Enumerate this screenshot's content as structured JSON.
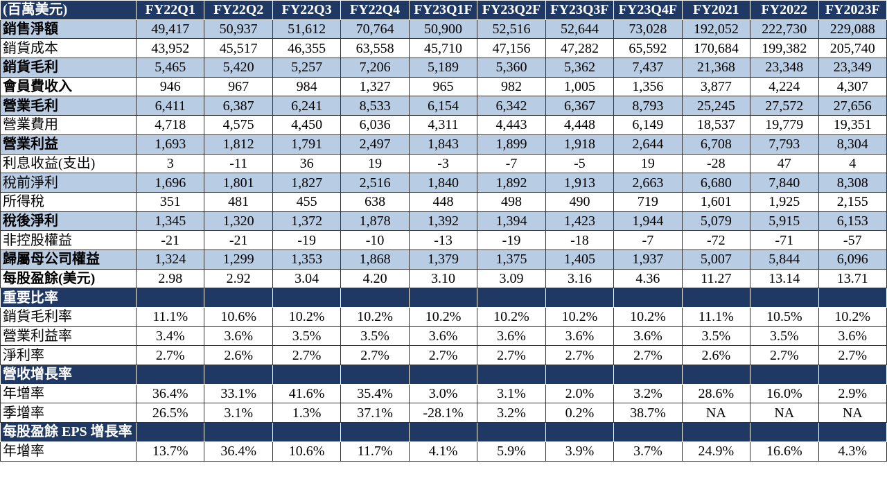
{
  "table": {
    "header": [
      "(百萬美元)",
      "FY22Q1",
      "FY22Q2",
      "FY22Q3",
      "FY22Q4",
      "FY23Q1F",
      "FY23Q2F",
      "FY23Q3F",
      "FY23Q4F",
      "FY2021",
      "FY2022",
      "FY2023F"
    ],
    "rows": [
      {
        "cells": [
          "銷售淨額",
          "49,417",
          "50,937",
          "51,612",
          "70,764",
          "50,900",
          "52,516",
          "52,644",
          "73,028",
          "192,052",
          "222,730",
          "229,088"
        ],
        "shaded": true,
        "bold": true
      },
      {
        "cells": [
          "銷貨成本",
          "43,952",
          "45,517",
          "46,355",
          "63,558",
          "45,710",
          "47,156",
          "47,282",
          "65,592",
          "170,684",
          "199,382",
          "205,740"
        ],
        "shaded": false,
        "bold": false
      },
      {
        "cells": [
          "銷貨毛利",
          "5,465",
          "5,420",
          "5,257",
          "7,206",
          "5,189",
          "5,360",
          "5,362",
          "7,437",
          "21,368",
          "23,348",
          "23,349"
        ],
        "shaded": true,
        "bold": true
      },
      {
        "cells": [
          "會員費收入",
          "946",
          "967",
          "984",
          "1,327",
          "965",
          "982",
          "1,005",
          "1,356",
          "3,877",
          "4,224",
          "4,307"
        ],
        "shaded": false,
        "bold": true
      },
      {
        "cells": [
          "營業毛利",
          "6,411",
          "6,387",
          "6,241",
          "8,533",
          "6,154",
          "6,342",
          "6,367",
          "8,793",
          "25,245",
          "27,572",
          "27,656"
        ],
        "shaded": true,
        "bold": true
      },
      {
        "cells": [
          "營業費用",
          "4,718",
          "4,575",
          "4,450",
          "6,036",
          "4,311",
          "4,443",
          "4,448",
          "6,149",
          "18,537",
          "19,779",
          "19,351"
        ],
        "shaded": false,
        "bold": false
      },
      {
        "cells": [
          "營業利益",
          "1,693",
          "1,812",
          "1,791",
          "2,497",
          "1,843",
          "1,899",
          "1,918",
          "2,644",
          "6,708",
          "7,793",
          "8,304"
        ],
        "shaded": true,
        "bold": true
      },
      {
        "cells": [
          "利息收益(支出)",
          "3",
          "-11",
          "36",
          "19",
          "-3",
          "-7",
          "-5",
          "19",
          "-28",
          "47",
          "4"
        ],
        "shaded": false,
        "bold": false
      },
      {
        "cells": [
          "稅前淨利",
          "1,696",
          "1,801",
          "1,827",
          "2,516",
          "1,840",
          "1,892",
          "1,913",
          "2,663",
          "6,680",
          "7,840",
          "8,308"
        ],
        "shaded": true,
        "bold": false
      },
      {
        "cells": [
          "所得稅",
          "351",
          "481",
          "455",
          "638",
          "448",
          "498",
          "490",
          "719",
          "1,601",
          "1,925",
          "2,155"
        ],
        "shaded": false,
        "bold": false
      },
      {
        "cells": [
          "稅後淨利",
          "1,345",
          "1,320",
          "1,372",
          "1,878",
          "1,392",
          "1,394",
          "1,423",
          "1,944",
          "5,079",
          "5,915",
          "6,153"
        ],
        "shaded": true,
        "bold": true
      },
      {
        "cells": [
          "非控股權益",
          "-21",
          "-21",
          "-19",
          "-10",
          "-13",
          "-19",
          "-18",
          "-7",
          "-72",
          "-71",
          "-57"
        ],
        "shaded": false,
        "bold": false
      },
      {
        "cells": [
          "歸屬母公司權益",
          "1,324",
          "1,299",
          "1,353",
          "1,868",
          "1,379",
          "1,375",
          "1,405",
          "1,937",
          "5,007",
          "5,844",
          "6,096"
        ],
        "shaded": true,
        "bold": true
      },
      {
        "cells": [
          "每股盈餘(美元)",
          "2.98",
          "2.92",
          "3.04",
          "4.20",
          "3.10",
          "3.09",
          "3.16",
          "4.36",
          "11.27",
          "13.14",
          "13.71"
        ],
        "shaded": false,
        "bold": true
      },
      {
        "cells": [
          "重要比率"
        ],
        "section": true
      },
      {
        "cells": [
          "銷貨毛利率",
          "11.1%",
          "10.6%",
          "10.2%",
          "10.2%",
          "10.2%",
          "10.2%",
          "10.2%",
          "10.2%",
          "11.1%",
          "10.5%",
          "10.2%"
        ],
        "shaded": false,
        "bold": false
      },
      {
        "cells": [
          "營業利益率",
          "3.4%",
          "3.6%",
          "3.5%",
          "3.5%",
          "3.6%",
          "3.6%",
          "3.6%",
          "3.6%",
          "3.5%",
          "3.5%",
          "3.6%"
        ],
        "shaded": false,
        "bold": false
      },
      {
        "cells": [
          "淨利率",
          "2.7%",
          "2.6%",
          "2.7%",
          "2.7%",
          "2.7%",
          "2.7%",
          "2.7%",
          "2.7%",
          "2.6%",
          "2.7%",
          "2.7%"
        ],
        "shaded": false,
        "bold": false
      },
      {
        "cells": [
          "營收增長率"
        ],
        "section": true
      },
      {
        "cells": [
          "年增率",
          "36.4%",
          "33.1%",
          "41.6%",
          "35.4%",
          "3.0%",
          "3.1%",
          "2.0%",
          "3.2%",
          "28.6%",
          "16.0%",
          "2.9%"
        ],
        "shaded": false,
        "bold": false
      },
      {
        "cells": [
          "季增率",
          "26.5%",
          "3.1%",
          "1.3%",
          "37.1%",
          "-28.1%",
          "3.2%",
          "0.2%",
          "38.7%",
          "NA",
          "NA",
          "NA"
        ],
        "shaded": false,
        "bold": false
      },
      {
        "cells": [
          "每股盈餘 EPS 增長率"
        ],
        "section": true
      },
      {
        "cells": [
          "年增率",
          "13.7%",
          "36.4%",
          "10.6%",
          "11.7%",
          "4.1%",
          "5.9%",
          "3.9%",
          "3.7%",
          "24.9%",
          "16.6%",
          "4.3%"
        ],
        "shaded": false,
        "bold": false
      }
    ]
  }
}
